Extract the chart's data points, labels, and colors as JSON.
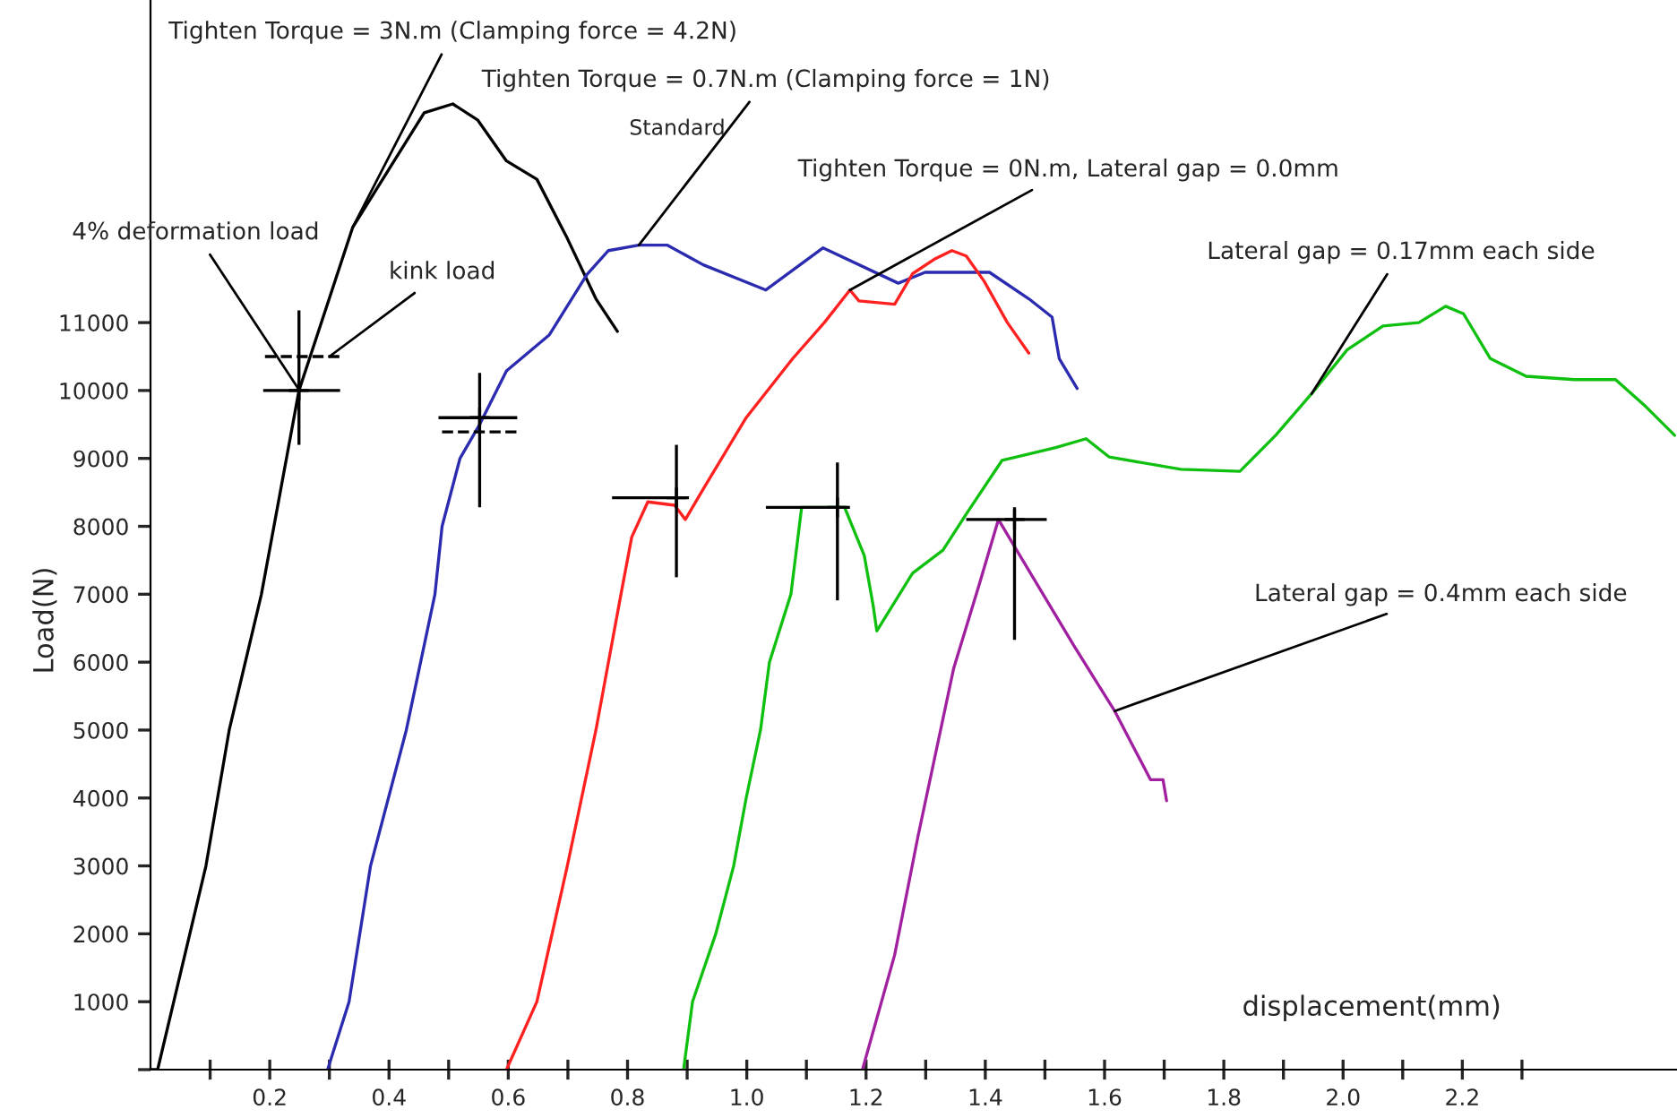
{
  "chart_data": {
    "type": "line",
    "xlabel": "displacement(mm)",
    "ylabel": "Load(N)",
    "xlim": [
      0,
      2.56
    ],
    "ylim": [
      0,
      15750
    ],
    "xticks": [
      {
        "value": 0.1,
        "label": null
      },
      {
        "value": 0.2,
        "label": "0.2"
      },
      {
        "value": 0.3,
        "label": null
      },
      {
        "value": 0.4,
        "label": "0.4"
      },
      {
        "value": 0.5,
        "label": null
      },
      {
        "value": 0.6,
        "label": "0.6"
      },
      {
        "value": 0.7,
        "label": null
      },
      {
        "value": 0.8,
        "label": "0.8"
      },
      {
        "value": 0.9,
        "label": null
      },
      {
        "value": 1.0,
        "label": "1.0"
      },
      {
        "value": 1.1,
        "label": null
      },
      {
        "value": 1.2,
        "label": "1.2"
      },
      {
        "value": 1.3,
        "label": null
      },
      {
        "value": 1.4,
        "label": "1.4"
      },
      {
        "value": 1.5,
        "label": null
      },
      {
        "value": 1.6,
        "label": "1.6"
      },
      {
        "value": 1.7,
        "label": null
      },
      {
        "value": 1.8,
        "label": "1.8"
      },
      {
        "value": 1.9,
        "label": null
      },
      {
        "value": 2.0,
        "label": "2.0"
      },
      {
        "value": 2.1,
        "label": null
      },
      {
        "value": 2.2,
        "label": "2.2"
      },
      {
        "value": 2.3,
        "label": null
      }
    ],
    "yticks": [
      {
        "value": 0,
        "label": null
      },
      1000,
      2000,
      3000,
      4000,
      5000,
      6000,
      7000,
      8000,
      9000,
      10000,
      11000
    ],
    "grid": false,
    "legend": false,
    "line_style": "solid",
    "marker": "none",
    "series": [
      {
        "color": "#000000",
        "x": [
          0.0,
          0.012,
          0.039,
          0.093,
          0.132,
          0.186,
          0.249,
          0.339,
          0.459,
          0.507,
          0.549,
          0.597,
          0.648,
          0.699,
          0.747,
          0.783
        ],
        "values": [
          0,
          0,
          1000,
          3000,
          5000,
          7000,
          10000,
          12400,
          14090,
          14220,
          13980,
          13380,
          13110,
          12240,
          11350,
          10870
        ]
      },
      {
        "color": "#2b2bb0",
        "x": [
          0.297,
          0.333,
          0.369,
          0.429,
          0.477,
          0.489,
          0.519,
          0.552,
          0.597,
          0.669,
          0.732,
          0.768,
          0.819,
          0.867,
          0.927,
          1.032,
          1.128,
          1.254,
          1.299,
          1.407,
          1.473,
          1.512,
          1.524,
          1.554
        ],
        "values": [
          0,
          1000,
          3000,
          5000,
          7000,
          8000,
          9000,
          9500,
          10290,
          10820,
          11710,
          12060,
          12140,
          12140,
          11850,
          11480,
          12100,
          11580,
          11740,
          11740,
          11350,
          11080,
          10470,
          10030
        ]
      },
      {
        "color": "#ff2020",
        "x": [
          0.597,
          0.648,
          0.699,
          0.747,
          0.789,
          0.807,
          0.834,
          0.879,
          0.897,
          0.927,
          0.999,
          1.077,
          1.13,
          1.173,
          1.188,
          1.248,
          1.278,
          1.314,
          1.344,
          1.368,
          1.398,
          1.437,
          1.473
        ],
        "values": [
          0,
          1000,
          3000,
          5000,
          7000,
          7840,
          8360,
          8310,
          8100,
          8550,
          9600,
          10470,
          11000,
          11480,
          11320,
          11270,
          11720,
          11930,
          12060,
          11980,
          11610,
          11000,
          10550
        ]
      },
      {
        "color": "#10c010",
        "x": [
          0.894,
          0.909,
          0.948,
          0.978,
          0.999,
          1.023,
          1.038,
          1.074,
          1.092,
          1.164,
          1.197,
          1.212,
          1.218,
          1.278,
          1.329,
          1.368,
          1.428,
          1.518,
          1.569,
          1.608,
          1.728,
          1.827,
          1.887,
          1.947,
          2.007,
          2.067,
          2.127,
          2.172,
          2.202,
          2.247,
          2.307,
          2.388,
          2.457,
          2.508,
          2.556
        ],
        "values": [
          0,
          1000,
          2000,
          3000,
          4000,
          5000,
          6000,
          7000,
          8280,
          8280,
          7570,
          6830,
          6460,
          7310,
          7650,
          8180,
          8970,
          9160,
          9290,
          9020,
          8840,
          8810,
          9340,
          9950,
          10600,
          10950,
          11000,
          11240,
          11130,
          10470,
          10210,
          10160,
          10160,
          9760,
          9340
        ]
      },
      {
        "color": "#a020a0",
        "x": [
          1.194,
          1.248,
          1.287,
          1.347,
          1.389,
          1.422,
          1.458,
          1.548,
          1.617,
          1.677,
          1.698,
          1.704
        ],
        "values": [
          0,
          1690,
          3430,
          5910,
          7120,
          8100,
          7570,
          6250,
          5280,
          4270,
          4270,
          3960
        ]
      },
      {
        "type": "scatter",
        "color": "#000000",
        "marker": "cross",
        "x": [
          0.249,
          0.552,
          0.882,
          1.152,
          1.449
        ],
        "values": [
          10000,
          9600,
          8420,
          8280,
          8100
        ],
        "errors": [
          [
            9200,
            11180
          ],
          [
            8280,
            10260
          ],
          [
            7250,
            9200
          ],
          [
            6910,
            8940
          ],
          [
            6330,
            8280
          ]
        ],
        "xerrors": [
          [
            0.189,
            0.318
          ],
          [
            0.483,
            0.615
          ],
          [
            0.774,
            0.903
          ],
          [
            1.032,
            1.173
          ],
          [
            1.368,
            1.503
          ]
        ]
      },
      {
        "type": "line",
        "color": "#000000",
        "line_style": "dashed",
        "x": [
          0.192,
          0.324
        ],
        "values": [
          10500,
          10500
        ]
      },
      {
        "type": "line",
        "color": "#000000",
        "line_style": "dashed",
        "x": [
          0.489,
          0.618
        ],
        "values": [
          9390,
          9390
        ]
      }
    ],
    "annotations": [
      {
        "text": "Tighten Torque = 3N.m (Clamping force = 4.2N)",
        "x": 0.339,
        "y": 12400
      },
      {
        "text": "Tighten Torque = 0.7N.m (Clamping force = 1N)",
        "x": 0.819,
        "y": 12140
      },
      "Standard",
      {
        "text": "Tighten Torque = 0N.m, Lateral gap = 0.0mm",
        "x": 1.173,
        "y": 11480
      },
      {
        "text": "4% deformation load",
        "x": 0.25,
        "y": 10000
      },
      {
        "text": "kink load",
        "x": 0.3,
        "y": 10500
      },
      {
        "text": "Lateral gap = 0.17mm each side",
        "x": 1.947,
        "y": 9950
      },
      {
        "text": "Lateral gap = 0.4mm each side",
        "x": 1.617,
        "y": 5280
      }
    ]
  }
}
